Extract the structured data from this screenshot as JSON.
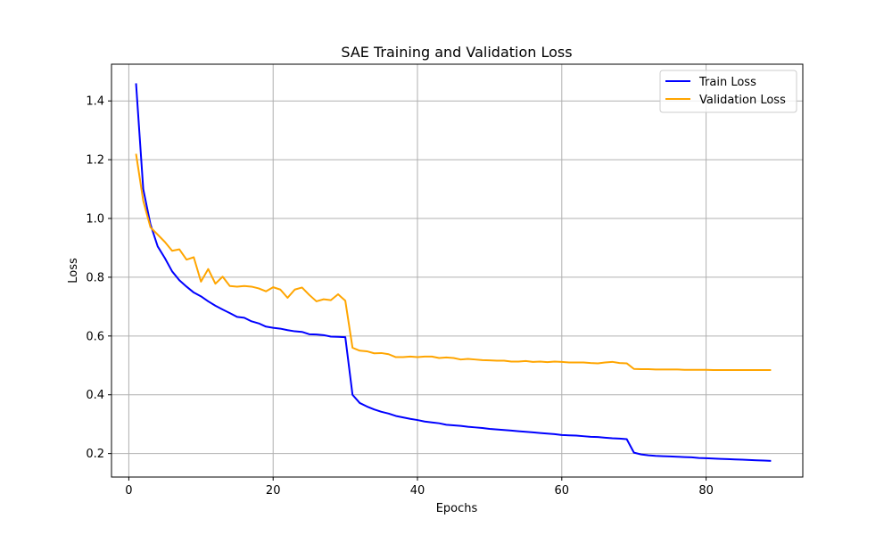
{
  "chart_data": {
    "type": "line",
    "title": "SAE Training and Validation Loss",
    "xlabel": "Epochs",
    "ylabel": "Loss",
    "xlim": [
      -2.4,
      93.4
    ],
    "ylim": [
      0.12,
      1.525
    ],
    "x_ticks": [
      0,
      20,
      40,
      60,
      80
    ],
    "y_ticks": [
      0.2,
      0.4,
      0.6,
      0.8,
      1.0,
      1.2,
      1.4
    ],
    "x_tick_labels": [
      "0",
      "20",
      "40",
      "60",
      "80"
    ],
    "y_tick_labels": [
      "0.2",
      "0.4",
      "0.6",
      "0.8",
      "1.0",
      "1.2",
      "1.4"
    ],
    "grid": true,
    "legend_position": "top-right",
    "x": [
      1,
      2,
      3,
      4,
      5,
      6,
      7,
      8,
      9,
      10,
      11,
      12,
      13,
      14,
      15,
      16,
      17,
      18,
      19,
      20,
      21,
      22,
      23,
      24,
      25,
      26,
      27,
      28,
      29,
      30,
      31,
      32,
      33,
      34,
      35,
      36,
      37,
      38,
      39,
      40,
      41,
      42,
      43,
      44,
      45,
      46,
      47,
      48,
      49,
      50,
      51,
      52,
      53,
      54,
      55,
      56,
      57,
      58,
      59,
      60,
      61,
      62,
      63,
      64,
      65,
      66,
      67,
      68,
      69,
      70,
      71,
      72,
      73,
      74,
      75,
      76,
      77,
      78,
      79,
      80,
      81,
      82,
      83,
      84,
      85,
      86,
      87,
      88,
      89
    ],
    "series": [
      {
        "name": "Train Loss",
        "color": "#0000ff",
        "values": [
          1.46,
          1.1,
          0.98,
          0.905,
          0.865,
          0.82,
          0.79,
          0.768,
          0.748,
          0.735,
          0.718,
          0.703,
          0.69,
          0.678,
          0.665,
          0.662,
          0.65,
          0.643,
          0.632,
          0.628,
          0.625,
          0.62,
          0.616,
          0.614,
          0.606,
          0.605,
          0.603,
          0.598,
          0.597,
          0.596,
          0.4,
          0.372,
          0.36,
          0.35,
          0.342,
          0.336,
          0.328,
          0.323,
          0.318,
          0.314,
          0.309,
          0.306,
          0.303,
          0.298,
          0.296,
          0.294,
          0.291,
          0.289,
          0.287,
          0.284,
          0.282,
          0.28,
          0.278,
          0.276,
          0.274,
          0.272,
          0.27,
          0.268,
          0.266,
          0.263,
          0.262,
          0.261,
          0.259,
          0.257,
          0.256,
          0.254,
          0.252,
          0.251,
          0.249,
          0.203,
          0.197,
          0.194,
          0.192,
          0.191,
          0.19,
          0.189,
          0.188,
          0.187,
          0.185,
          0.184,
          0.183,
          0.182,
          0.181,
          0.18,
          0.179,
          0.178,
          0.177,
          0.176,
          0.175
        ]
      },
      {
        "name": "Validation Loss",
        "color": "#ffa500",
        "values": [
          1.22,
          1.06,
          0.97,
          0.945,
          0.92,
          0.89,
          0.895,
          0.86,
          0.868,
          0.785,
          0.828,
          0.778,
          0.802,
          0.77,
          0.768,
          0.77,
          0.768,
          0.762,
          0.752,
          0.766,
          0.758,
          0.73,
          0.758,
          0.765,
          0.74,
          0.718,
          0.725,
          0.722,
          0.742,
          0.72,
          0.56,
          0.55,
          0.548,
          0.541,
          0.542,
          0.538,
          0.528,
          0.528,
          0.53,
          0.528,
          0.53,
          0.53,
          0.525,
          0.527,
          0.525,
          0.52,
          0.522,
          0.52,
          0.518,
          0.517,
          0.516,
          0.516,
          0.513,
          0.513,
          0.515,
          0.512,
          0.513,
          0.511,
          0.513,
          0.512,
          0.51,
          0.51,
          0.51,
          0.508,
          0.507,
          0.51,
          0.512,
          0.508,
          0.507,
          0.488,
          0.487,
          0.487,
          0.486,
          0.486,
          0.486,
          0.486,
          0.485,
          0.485,
          0.485,
          0.485,
          0.484,
          0.484,
          0.484,
          0.484,
          0.484,
          0.484,
          0.484,
          0.484,
          0.484
        ]
      }
    ]
  }
}
